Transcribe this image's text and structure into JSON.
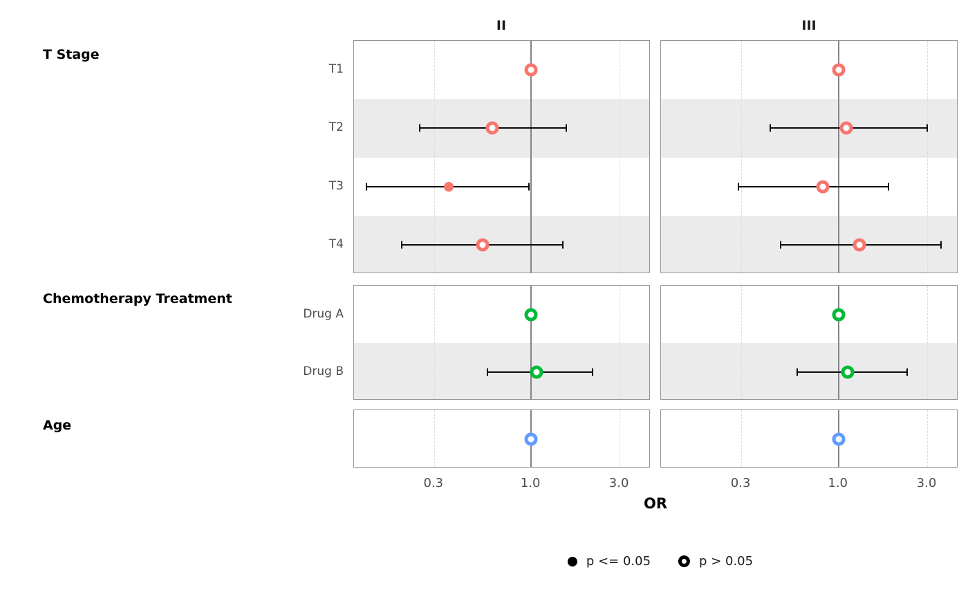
{
  "chart_data": {
    "type": "scatter",
    "subtype": "forest-plot",
    "xlabel": "OR",
    "xscale": "log",
    "xlim": [
      0.111,
      4.41
    ],
    "grid": "dashed-vertical-at-ticks",
    "reference_line": 1.0,
    "xticks": [
      {
        "value": 0.3,
        "label": "0.3"
      },
      {
        "value": 1.0,
        "label": "1.0"
      },
      {
        "value": 3.0,
        "label": "3.0"
      }
    ],
    "columns": [
      "II",
      "III"
    ],
    "groups": [
      {
        "label": "T Stage",
        "color": "#F8766D",
        "rows": [
          {
            "label": "T1",
            "estimates": [
              {
                "or": 1.0,
                "lo": null,
                "hi": null,
                "significant": false
              },
              {
                "or": 1.0,
                "lo": null,
                "hi": null,
                "significant": false
              }
            ]
          },
          {
            "label": "T2",
            "estimates": [
              {
                "or": 0.62,
                "lo": 0.25,
                "hi": 1.55,
                "significant": false
              },
              {
                "or": 1.1,
                "lo": 0.43,
                "hi": 3.0,
                "significant": false
              }
            ]
          },
          {
            "label": "T3",
            "estimates": [
              {
                "or": 0.36,
                "lo": 0.13,
                "hi": 0.97,
                "significant": true
              },
              {
                "or": 0.82,
                "lo": 0.29,
                "hi": 1.85,
                "significant": false
              }
            ]
          },
          {
            "label": "T4",
            "estimates": [
              {
                "or": 0.55,
                "lo": 0.2,
                "hi": 1.48,
                "significant": false
              },
              {
                "or": 1.3,
                "lo": 0.49,
                "hi": 3.55,
                "significant": false
              }
            ]
          }
        ]
      },
      {
        "label": "Chemotherapy Treatment",
        "color": "#00BA38",
        "rows": [
          {
            "label": "Drug A",
            "estimates": [
              {
                "or": 1.0,
                "lo": null,
                "hi": null,
                "significant": false
              },
              {
                "or": 1.0,
                "lo": null,
                "hi": null,
                "significant": false
              }
            ]
          },
          {
            "label": "Drug B",
            "estimates": [
              {
                "or": 1.07,
                "lo": 0.58,
                "hi": 2.15,
                "significant": false
              },
              {
                "or": 1.12,
                "lo": 0.6,
                "hi": 2.35,
                "significant": false
              }
            ]
          }
        ]
      },
      {
        "label": "Age",
        "color": "#619CFF",
        "rows": [
          {
            "label": "",
            "estimates": [
              {
                "or": 1.0,
                "lo": 0.97,
                "hi": 1.04,
                "significant": false
              },
              {
                "or": 1.0,
                "lo": 0.97,
                "hi": 1.04,
                "significant": false
              }
            ]
          }
        ]
      }
    ],
    "legend": [
      {
        "label": "p <= 0.05",
        "style": "filled"
      },
      {
        "label": "p > 0.05",
        "style": "open"
      }
    ]
  },
  "colors": {
    "t_stage_series": "#F8766D",
    "chemotherapy_series": "#00BA38",
    "age_series": "#619CFF",
    "reference_line": "#848484",
    "row_stripe": "#ebebeb",
    "panel_border": "#949494"
  }
}
